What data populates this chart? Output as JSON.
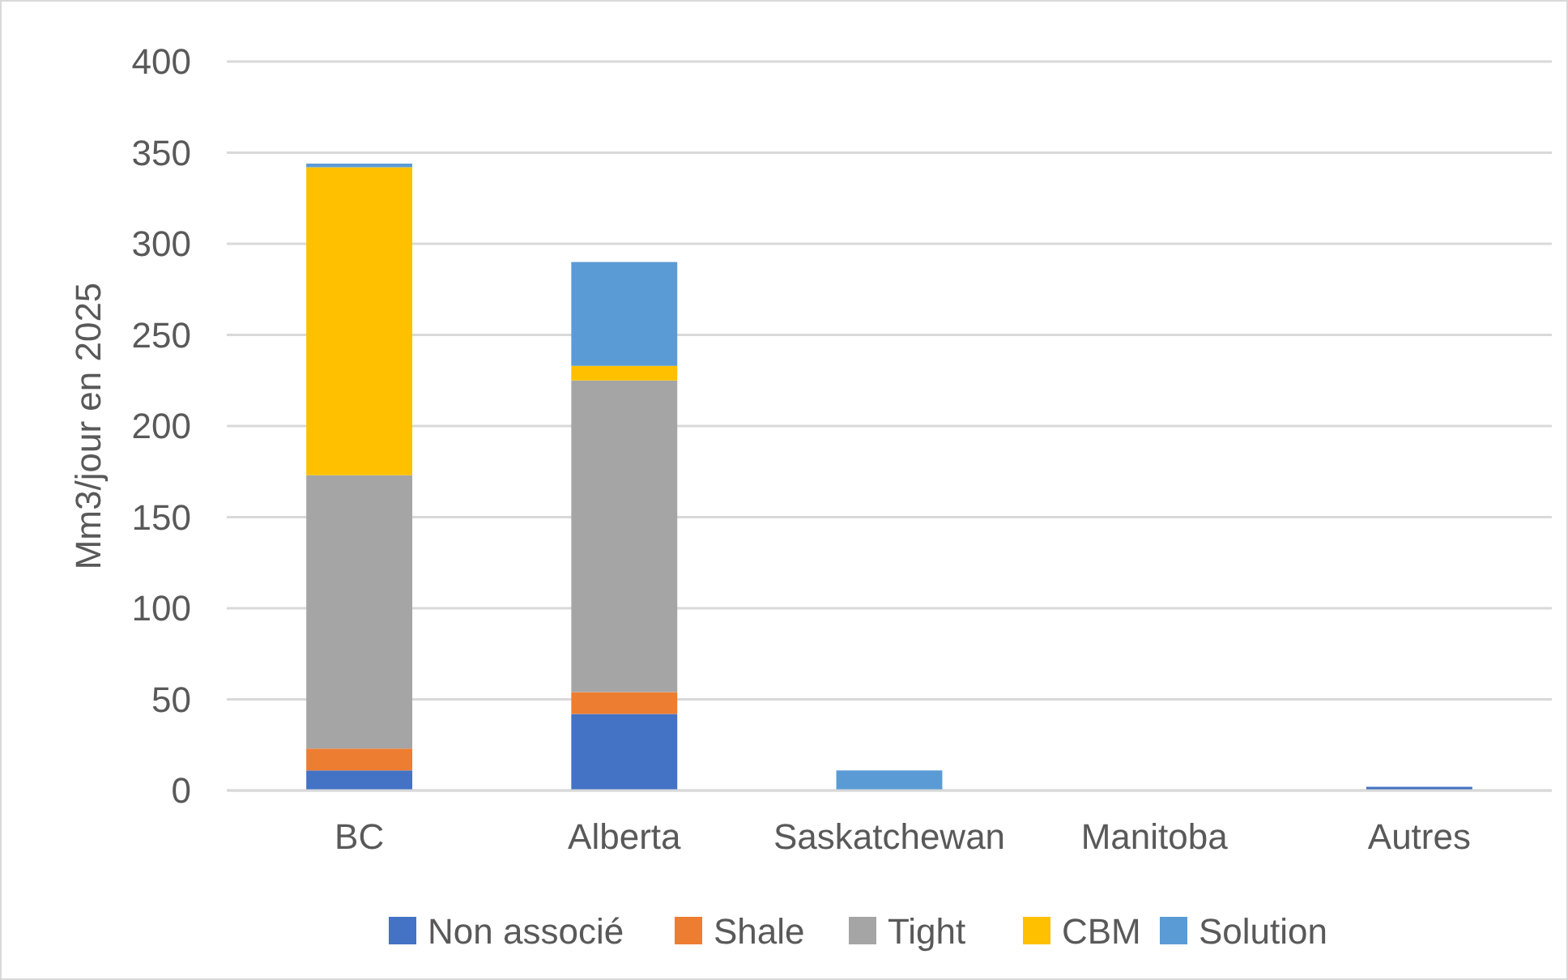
{
  "chart_data": {
    "type": "bar",
    "stacked": true,
    "ylabel": "Mm3/jour en 2025",
    "categories": [
      "BC",
      "Alberta",
      "Saskatchewan",
      "Manitoba",
      "Autres"
    ],
    "series": [
      {
        "name": "Non associé",
        "color": "#4472c4",
        "values": [
          11,
          42,
          0,
          0,
          2
        ]
      },
      {
        "name": "Shale",
        "color": "#ed7d31",
        "values": [
          12,
          12,
          0,
          0,
          0
        ]
      },
      {
        "name": "Tight",
        "color": "#a5a5a5",
        "values": [
          150,
          171,
          null,
          0,
          0
        ]
      },
      {
        "name": "CBM",
        "color": "#ffc000",
        "values": [
          169,
          8,
          0,
          0,
          0
        ]
      },
      {
        "name": "Solution",
        "color": "#5b9bd5",
        "values": [
          2,
          57,
          11,
          0,
          0
        ]
      }
    ],
    "ylim": [
      0,
      400
    ],
    "yticks": [
      0,
      50,
      100,
      150,
      200,
      250,
      300,
      350,
      400
    ],
    "grid": "y",
    "legend": "bottom"
  }
}
